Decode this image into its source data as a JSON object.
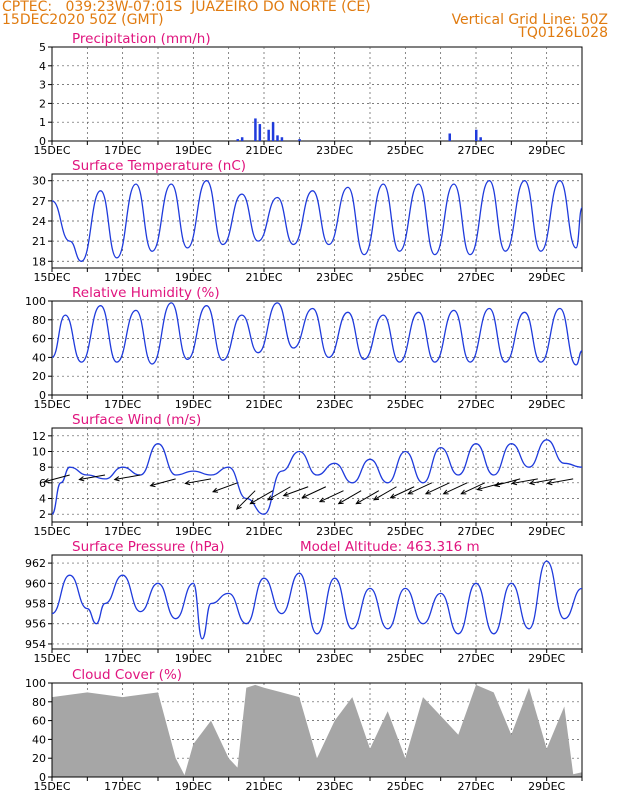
{
  "header": {
    "left_line1": "CPTEC:   039:23W-07:01S  JUAZEIRO DO NORTE (CE)",
    "left_line2": "15DEC2020 50Z (GMT)",
    "right_line1": "Vertical Grid Line: 50Z",
    "right_line2": "TQ0126L028"
  },
  "colors": {
    "header": "#e07b10",
    "title": "#e0147e",
    "line": "#1f3bdc",
    "cloud": "#a6a6a6"
  },
  "chart_data": [
    {
      "type": "bar",
      "title": "Precipitation (mm/h)",
      "x_range": [
        "15DEC",
        "30DEC"
      ],
      "x_ticks": [
        "15DEC",
        "17DEC",
        "19DEC",
        "21DEC",
        "23DEC",
        "25DEC",
        "27DEC",
        "29DEC"
      ],
      "ylim": [
        0,
        5
      ],
      "y_ticks": [
        0,
        1,
        2,
        3,
        4,
        5
      ],
      "grid": true,
      "x": [
        "20DEC 06Z",
        "20DEC 09Z",
        "20DEC 18Z",
        "20DEC 21Z",
        "21DEC 03Z",
        "21DEC 06Z",
        "21DEC 09Z",
        "21DEC 12Z",
        "22DEC 00Z",
        "26DEC 06Z",
        "27DEC 00Z",
        "27DEC 03Z"
      ],
      "values": [
        0.1,
        0.2,
        1.2,
        0.9,
        0.6,
        1.0,
        0.3,
        0.2,
        0.1,
        0.4,
        0.6,
        0.2
      ]
    },
    {
      "type": "line",
      "title": "Surface Temperature (nC)",
      "x_range": [
        "15DEC",
        "30DEC"
      ],
      "x_ticks": [
        "15DEC",
        "17DEC",
        "19DEC",
        "21DEC",
        "23DEC",
        "25DEC",
        "27DEC",
        "29DEC"
      ],
      "ylim": [
        17,
        31
      ],
      "y_ticks": [
        18,
        21,
        24,
        27,
        30
      ],
      "grid": true,
      "x": [
        "15DEC 00Z",
        "15DEC 12Z",
        "15DEC 20Z",
        "16DEC 09Z",
        "16DEC 20Z",
        "17DEC 09Z",
        "17DEC 20Z",
        "18DEC 09Z",
        "18DEC 20Z",
        "19DEC 09Z",
        "19DEC 20Z",
        "20DEC 09Z",
        "20DEC 20Z",
        "21DEC 09Z",
        "21DEC 20Z",
        "22DEC 09Z",
        "22DEC 20Z",
        "23DEC 09Z",
        "23DEC 20Z",
        "24DEC 09Z",
        "24DEC 20Z",
        "25DEC 09Z",
        "25DEC 20Z",
        "26DEC 09Z",
        "26DEC 20Z",
        "27DEC 09Z",
        "27DEC 20Z",
        "28DEC 09Z",
        "28DEC 20Z",
        "29DEC 09Z",
        "29DEC 20Z",
        "30DEC 00Z"
      ],
      "values": [
        27.0,
        21.0,
        18.0,
        28.5,
        18.5,
        29.5,
        19.5,
        29.5,
        20.0,
        30.0,
        20.5,
        28.0,
        21.0,
        27.5,
        20.5,
        28.5,
        20.5,
        29.0,
        19.0,
        29.5,
        19.5,
        29.5,
        19.0,
        29.5,
        19.0,
        30.0,
        19.5,
        30.0,
        19.5,
        30.0,
        20.0,
        26.0
      ]
    },
    {
      "type": "line",
      "title": "Relative Humidity (%)",
      "x_range": [
        "15DEC",
        "30DEC"
      ],
      "x_ticks": [
        "15DEC",
        "17DEC",
        "19DEC",
        "21DEC",
        "23DEC",
        "25DEC",
        "27DEC",
        "29DEC"
      ],
      "ylim": [
        0,
        100
      ],
      "y_ticks": [
        0,
        20,
        40,
        60,
        80,
        100
      ],
      "grid": true,
      "x": [
        "15DEC 00Z",
        "15DEC 09Z",
        "15DEC 20Z",
        "16DEC 09Z",
        "16DEC 20Z",
        "17DEC 09Z",
        "17DEC 20Z",
        "18DEC 09Z",
        "18DEC 20Z",
        "19DEC 09Z",
        "19DEC 20Z",
        "20DEC 09Z",
        "20DEC 20Z",
        "21DEC 09Z",
        "21DEC 20Z",
        "22DEC 09Z",
        "22DEC 20Z",
        "23DEC 09Z",
        "23DEC 20Z",
        "24DEC 09Z",
        "24DEC 20Z",
        "25DEC 09Z",
        "25DEC 20Z",
        "26DEC 09Z",
        "26DEC 20Z",
        "27DEC 09Z",
        "27DEC 20Z",
        "28DEC 09Z",
        "28DEC 20Z",
        "29DEC 09Z",
        "29DEC 20Z",
        "30DEC 00Z"
      ],
      "values": [
        40,
        85,
        35,
        95,
        35,
        90,
        33,
        98,
        38,
        95,
        37,
        85,
        45,
        98,
        50,
        92,
        40,
        88,
        38,
        85,
        35,
        88,
        35,
        90,
        35,
        92,
        35,
        88,
        35,
        92,
        32,
        47
      ]
    },
    {
      "type": "line",
      "title": "Surface Wind (m/s)",
      "x_range": [
        "15DEC",
        "30DEC"
      ],
      "x_ticks": [
        "15DEC",
        "17DEC",
        "19DEC",
        "21DEC",
        "23DEC",
        "25DEC",
        "27DEC",
        "29DEC"
      ],
      "ylim": [
        1,
        13
      ],
      "y_ticks": [
        2,
        4,
        6,
        8,
        10,
        12
      ],
      "grid": true,
      "x": [
        "15DEC 00Z",
        "15DEC 06Z",
        "15DEC 12Z",
        "16DEC 00Z",
        "16DEC 12Z",
        "17DEC 00Z",
        "17DEC 12Z",
        "18DEC 00Z",
        "18DEC 12Z",
        "19DEC 00Z",
        "19DEC 12Z",
        "20DEC 00Z",
        "20DEC 12Z",
        "21DEC 00Z",
        "21DEC 12Z",
        "22DEC 00Z",
        "22DEC 12Z",
        "23DEC 00Z",
        "23DEC 12Z",
        "24DEC 00Z",
        "24DEC 12Z",
        "25DEC 00Z",
        "25DEC 12Z",
        "26DEC 00Z",
        "26DEC 12Z",
        "27DEC 00Z",
        "27DEC 12Z",
        "28DEC 00Z",
        "28DEC 12Z",
        "29DEC 00Z",
        "29DEC 12Z",
        "30DEC 00Z"
      ],
      "values": [
        2.0,
        6.0,
        8.0,
        7.0,
        6.5,
        8.0,
        7.0,
        11.0,
        7.0,
        7.5,
        7.0,
        8.0,
        4.0,
        2.0,
        7.5,
        10.0,
        7.0,
        8.5,
        6.0,
        9.0,
        6.0,
        10.0,
        6.0,
        10.5,
        7.0,
        11.0,
        7.0,
        11.0,
        8.0,
        11.5,
        8.5,
        8.0
      ],
      "arrow_times": [
        "15DEC 12Z",
        "16DEC 12Z",
        "17DEC 12Z",
        "18DEC 12Z",
        "19DEC 12Z",
        "20DEC 06Z",
        "20DEC 18Z",
        "21DEC 06Z",
        "21DEC 18Z",
        "22DEC 06Z",
        "22DEC 18Z",
        "23DEC 06Z",
        "23DEC 18Z",
        "24DEC 06Z",
        "24DEC 18Z",
        "25DEC 06Z",
        "25DEC 18Z",
        "26DEC 06Z",
        "26DEC 18Z",
        "27DEC 06Z",
        "27DEC 18Z",
        "28DEC 06Z",
        "28DEC 18Z",
        "29DEC 06Z",
        "29DEC 18Z"
      ],
      "arrow_speed": [
        7.0,
        7.0,
        7.0,
        6.5,
        6.5,
        6.0,
        5.0,
        5.0,
        5.5,
        5.5,
        5.5,
        5.0,
        5.0,
        5.0,
        5.5,
        5.5,
        6.0,
        6.0,
        6.0,
        6.0,
        6.0,
        6.5,
        6.5,
        6.5,
        6.5
      ],
      "arrow_dir_from": [
        75,
        80,
        80,
        75,
        80,
        70,
        45,
        60,
        60,
        70,
        65,
        65,
        60,
        60,
        60,
        65,
        65,
        65,
        65,
        65,
        75,
        75,
        80,
        80,
        80
      ]
    },
    {
      "type": "line",
      "title": "Surface Pressure (hPa)",
      "annotation": "Model Altitude: 463.316 m",
      "x_range": [
        "15DEC",
        "30DEC"
      ],
      "x_ticks": [
        "15DEC",
        "17DEC",
        "19DEC",
        "21DEC",
        "23DEC",
        "25DEC",
        "27DEC",
        "29DEC"
      ],
      "ylim": [
        953.5,
        962.8
      ],
      "y_ticks": [
        954,
        956,
        958,
        960,
        962
      ],
      "grid": true,
      "x": [
        "15DEC 00Z",
        "15DEC 12Z",
        "16DEC 00Z",
        "16DEC 06Z",
        "16DEC 12Z",
        "17DEC 00Z",
        "17DEC 12Z",
        "18DEC 00Z",
        "18DEC 12Z",
        "19DEC 00Z",
        "19DEC 06Z",
        "19DEC 12Z",
        "20DEC 00Z",
        "20DEC 12Z",
        "21DEC 00Z",
        "21DEC 12Z",
        "22DEC 00Z",
        "22DEC 12Z",
        "23DEC 00Z",
        "23DEC 12Z",
        "24DEC 00Z",
        "24DEC 12Z",
        "25DEC 00Z",
        "25DEC 12Z",
        "26DEC 00Z",
        "26DEC 12Z",
        "27DEC 00Z",
        "27DEC 12Z",
        "28DEC 00Z",
        "28DEC 12Z",
        "29DEC 00Z",
        "29DEC 12Z",
        "30DEC 00Z"
      ],
      "values": [
        957.0,
        960.8,
        957.5,
        956.0,
        958.0,
        960.8,
        957.2,
        960.0,
        956.5,
        960.0,
        954.5,
        958.0,
        959.0,
        956.0,
        960.5,
        957.0,
        961.0,
        955.0,
        960.5,
        955.5,
        959.5,
        955.5,
        959.5,
        956.0,
        959.0,
        955.0,
        960.0,
        955.0,
        960.0,
        955.5,
        962.2,
        956.5,
        959.5
      ]
    },
    {
      "type": "area",
      "title": "Cloud Cover (%)",
      "x_range": [
        "15DEC",
        "30DEC"
      ],
      "x_ticks": [
        "15DEC",
        "17DEC",
        "19DEC",
        "21DEC",
        "23DEC",
        "25DEC",
        "27DEC",
        "29DEC"
      ],
      "ylim": [
        0,
        100
      ],
      "y_ticks": [
        0,
        20,
        40,
        60,
        80,
        100
      ],
      "grid": true,
      "x": [
        "15DEC 00Z",
        "16DEC 00Z",
        "17DEC 00Z",
        "18DEC 00Z",
        "18DEC 12Z",
        "18DEC 18Z",
        "19DEC 00Z",
        "19DEC 12Z",
        "20DEC 00Z",
        "20DEC 06Z",
        "20DEC 12Z",
        "20DEC 18Z",
        "21DEC 00Z",
        "21DEC 12Z",
        "22DEC 00Z",
        "22DEC 12Z",
        "23DEC 00Z",
        "23DEC 12Z",
        "24DEC 00Z",
        "24DEC 12Z",
        "25DEC 00Z",
        "25DEC 12Z",
        "26DEC 00Z",
        "26DEC 12Z",
        "27DEC 00Z",
        "27DEC 12Z",
        "28DEC 00Z",
        "28DEC 12Z",
        "29DEC 00Z",
        "29DEC 12Z",
        "29DEC 18Z",
        "30DEC 00Z"
      ],
      "values": [
        85,
        90,
        85,
        90,
        20,
        2,
        35,
        60,
        20,
        10,
        95,
        98,
        95,
        90,
        85,
        20,
        60,
        85,
        30,
        70,
        20,
        85,
        65,
        45,
        98,
        90,
        45,
        95,
        30,
        75,
        3,
        5
      ]
    }
  ]
}
